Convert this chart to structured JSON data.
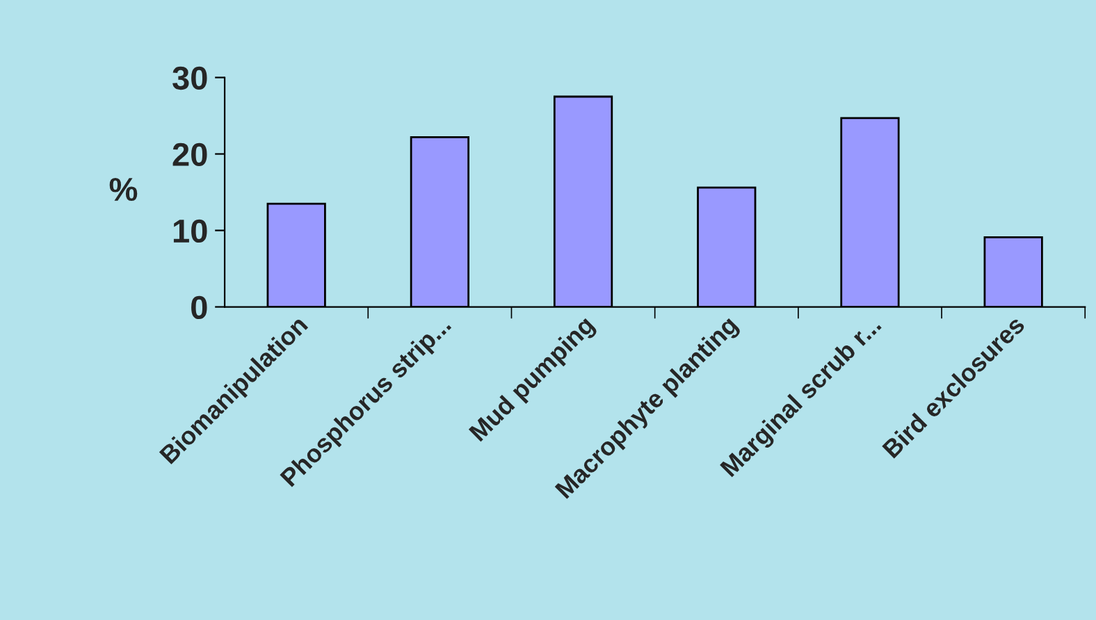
{
  "chart_data": {
    "type": "bar",
    "ylabel": "%",
    "categories": [
      "Biomanipulation",
      "Phosphorus strip...",
      "Mud pumping",
      "Macrophyte planting",
      "Marginal scrub r...",
      "Bird exclosures"
    ],
    "values": [
      13.5,
      22.2,
      27.5,
      15.6,
      24.7,
      9.1
    ],
    "color": "#9999ff",
    "ylim": [
      0,
      30
    ],
    "yticks": [
      0,
      10,
      20,
      30
    ],
    "grid": false
  }
}
